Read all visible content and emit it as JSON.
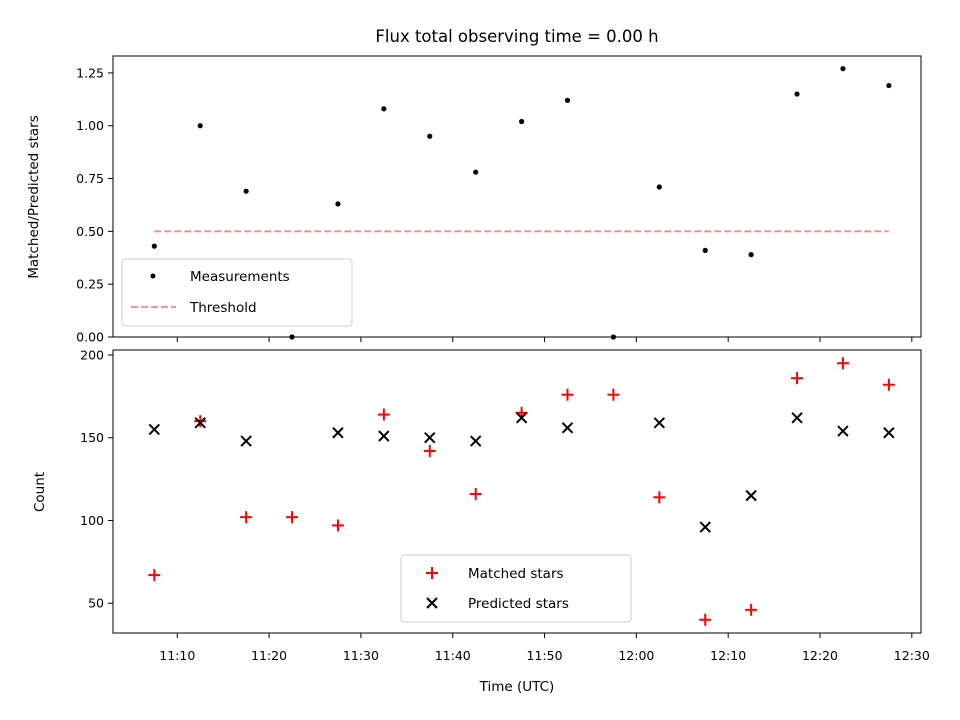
{
  "chart_data": [
    {
      "type": "scatter",
      "title": "Flux total observing time = 0.00 h",
      "xlabel": "",
      "ylabel": "Matched/Predicted stars",
      "ylim": [
        0,
        1.33
      ],
      "yticks": [
        "0.00",
        "0.25",
        "0.50",
        "0.75",
        "1.00",
        "1.25"
      ],
      "legend_position": "bottom-left",
      "x": [
        "11:07:30",
        "11:12:30",
        "11:17:30",
        "11:22:30",
        "11:27:30",
        "11:32:30",
        "11:37:30",
        "11:42:30",
        "11:47:30",
        "11:52:30",
        "11:57:30",
        "12:02:30",
        "12:07:30",
        "12:12:30",
        "12:17:30",
        "12:22:30",
        "12:27:30"
      ],
      "series": [
        {
          "name": "Measurements",
          "marker": "dot",
          "color": "#000000",
          "values": [
            0.43,
            1.0,
            0.69,
            0.0,
            0.63,
            1.08,
            0.95,
            0.78,
            1.02,
            1.12,
            0.0,
            0.71,
            0.41,
            0.39,
            1.15,
            1.27,
            1.19
          ]
        },
        {
          "name": "Threshold",
          "style": "dashed-line",
          "color": "#ff7f7f",
          "x": [
            "11:07:30",
            "12:27:30"
          ],
          "values": [
            0.5,
            0.5
          ]
        }
      ]
    },
    {
      "type": "scatter",
      "title": "",
      "xlabel": "Time (UTC)",
      "ylabel": "Count",
      "ylim": [
        32,
        203
      ],
      "yticks": [
        "50",
        "100",
        "150",
        "200"
      ],
      "xticks": [
        "11:10",
        "11:20",
        "11:30",
        "11:40",
        "11:50",
        "12:00",
        "12:10",
        "12:20",
        "12:30"
      ],
      "legend_position": "bottom-center",
      "x": [
        "11:07:30",
        "11:12:30",
        "11:17:30",
        "11:22:30",
        "11:27:30",
        "11:32:30",
        "11:37:30",
        "11:42:30",
        "11:47:30",
        "11:52:30",
        "11:57:30",
        "12:02:30",
        "12:07:30",
        "12:12:30",
        "12:17:30",
        "12:22:30",
        "12:27:30"
      ],
      "series": [
        {
          "name": "Matched stars",
          "marker": "plus",
          "color": "#ff0000",
          "values": [
            67,
            160,
            102,
            102,
            97,
            164,
            142,
            116,
            165,
            176,
            176,
            114,
            40,
            46,
            186,
            195,
            182
          ]
        },
        {
          "name": "Predicted stars",
          "marker": "x",
          "color": "#000000",
          "values": [
            155,
            159,
            148,
            null,
            153,
            151,
            150,
            148,
            162,
            156,
            null,
            159,
            96,
            115,
            162,
            154,
            153
          ]
        }
      ]
    }
  ]
}
